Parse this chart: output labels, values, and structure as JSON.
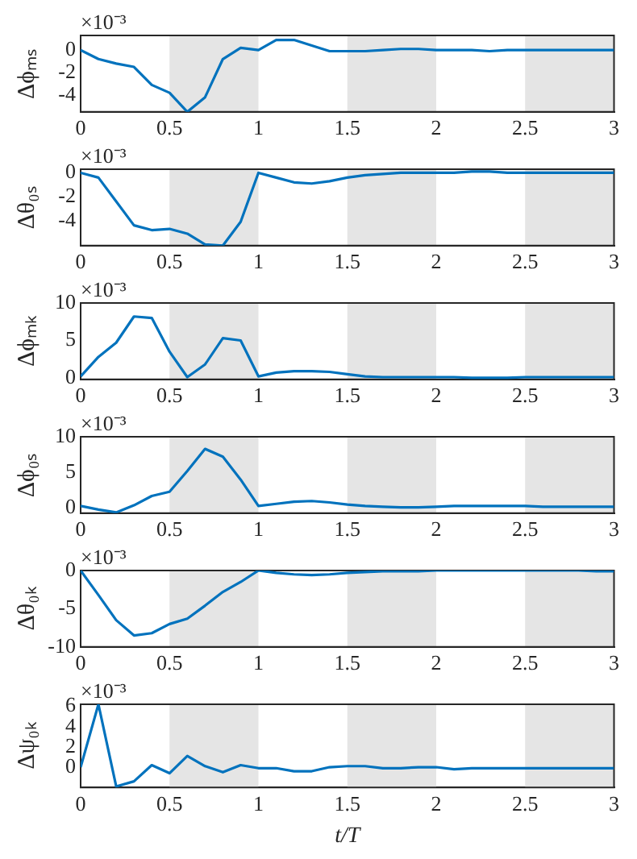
{
  "chart_data": [
    {
      "type": "line",
      "ylabel": "Δϕₘₛ",
      "annotations": [
        "×10⁻³"
      ],
      "color": "#0072bd",
      "xlim": [
        0,
        3
      ],
      "xticks": [
        0,
        0.5,
        1,
        1.5,
        2,
        2.5,
        3
      ],
      "ylim": [
        -5.5,
        1.3
      ],
      "yticks": [
        -4,
        -2,
        0
      ],
      "bands": [
        {
          "axis": "x",
          "from": 0.5,
          "to": 1,
          "color": "#e5e5e5"
        },
        {
          "axis": "x",
          "from": 1.5,
          "to": 2,
          "color": "#e5e5e5"
        },
        {
          "axis": "x",
          "from": 2.5,
          "to": 3,
          "color": "#e5e5e5"
        }
      ],
      "x": [
        0,
        0.1,
        0.2,
        0.3,
        0.4,
        0.5,
        0.6,
        0.7,
        0.8,
        0.9,
        1,
        1.1,
        1.2,
        1.3,
        1.4,
        1.5,
        1.6,
        1.7,
        1.8,
        1.9,
        2,
        2.1,
        2.2,
        2.3,
        2.4,
        2.5,
        2.6,
        2.7,
        2.8,
        2.9,
        3
      ],
      "values": [
        0,
        -0.8,
        -1.2,
        -1.5,
        -3.1,
        -3.8,
        -5.5,
        -4.2,
        -0.8,
        0.2,
        0,
        0.9,
        0.9,
        0.4,
        -0.1,
        -0.1,
        -0.1,
        0,
        0.1,
        0.1,
        0,
        0,
        0,
        -0.1,
        0,
        0,
        0,
        0,
        0,
        0,
        0
      ]
    },
    {
      "type": "line",
      "ylabel": "Δθ₀ₛ",
      "annotations": [
        "×10⁻³"
      ],
      "color": "#0072bd",
      "xlim": [
        0,
        3
      ],
      "xticks": [
        0,
        0.5,
        1,
        1.5,
        2,
        2.5,
        3
      ],
      "ylim": [
        -6.1,
        0.3
      ],
      "yticks": [
        -4,
        -2,
        0
      ],
      "bands": [
        {
          "axis": "x",
          "from": 0.5,
          "to": 1,
          "color": "#e5e5e5"
        },
        {
          "axis": "x",
          "from": 1.5,
          "to": 2,
          "color": "#e5e5e5"
        },
        {
          "axis": "x",
          "from": 2.5,
          "to": 3,
          "color": "#e5e5e5"
        }
      ],
      "x": [
        0,
        0.1,
        0.2,
        0.3,
        0.4,
        0.5,
        0.6,
        0.7,
        0.8,
        0.9,
        1,
        1.1,
        1.2,
        1.3,
        1.4,
        1.5,
        1.6,
        1.7,
        1.8,
        1.9,
        2,
        2.1,
        2.2,
        2.3,
        2.4,
        2.5,
        2.6,
        2.7,
        2.8,
        2.9,
        3
      ],
      "values": [
        0,
        -0.4,
        -2.4,
        -4.4,
        -4.8,
        -4.7,
        -5.1,
        -6.0,
        -6.1,
        -4.1,
        0,
        -0.4,
        -0.8,
        -0.9,
        -0.7,
        -0.4,
        -0.2,
        -0.1,
        0,
        0,
        0,
        0,
        0.1,
        0.1,
        0,
        0,
        0,
        0,
        0,
        0,
        0
      ]
    },
    {
      "type": "line",
      "ylabel": "Δϕₘₖ",
      "annotations": [
        "×10⁻³"
      ],
      "color": "#0072bd",
      "xlim": [
        0,
        3
      ],
      "xticks": [
        0,
        0.5,
        1,
        1.5,
        2,
        2.5,
        3
      ],
      "ylim": [
        -0.2,
        10
      ],
      "yticks": [
        0,
        5,
        10
      ],
      "bands": [
        {
          "axis": "x",
          "from": 0.5,
          "to": 1,
          "color": "#e5e5e5"
        },
        {
          "axis": "x",
          "from": 1.5,
          "to": 2,
          "color": "#e5e5e5"
        },
        {
          "axis": "x",
          "from": 2.5,
          "to": 3,
          "color": "#e5e5e5"
        }
      ],
      "x": [
        0,
        0.1,
        0.2,
        0.3,
        0.4,
        0.5,
        0.6,
        0.7,
        0.8,
        0.9,
        1,
        1.1,
        1.2,
        1.3,
        1.4,
        1.5,
        1.6,
        1.7,
        1.8,
        1.9,
        2,
        2.1,
        2.2,
        2.3,
        2.4,
        2.5,
        2.6,
        2.7,
        2.8,
        2.9,
        3
      ],
      "values": [
        0.2,
        2.8,
        4.7,
        8.2,
        8.0,
        3.5,
        0.1,
        1.8,
        5.3,
        5.0,
        0.2,
        0.7,
        0.9,
        0.9,
        0.8,
        0.5,
        0.2,
        0.1,
        0.1,
        0.1,
        0.1,
        0.1,
        0,
        0,
        0,
        0.1,
        0.1,
        0.1,
        0.1,
        0.1,
        0.1
      ]
    },
    {
      "type": "line",
      "ylabel": "Δϕ₀ₛ",
      "annotations": [
        "×10⁻³"
      ],
      "color": "#0072bd",
      "xlim": [
        0,
        3
      ],
      "xticks": [
        0,
        0.5,
        1,
        1.5,
        2,
        2.5,
        3
      ],
      "ylim": [
        -0.7,
        10
      ],
      "yticks": [
        0,
        5,
        10
      ],
      "bands": [
        {
          "axis": "x",
          "from": 0.5,
          "to": 1,
          "color": "#e5e5e5"
        },
        {
          "axis": "x",
          "from": 1.5,
          "to": 2,
          "color": "#e5e5e5"
        },
        {
          "axis": "x",
          "from": 2.5,
          "to": 3,
          "color": "#e5e5e5"
        }
      ],
      "x": [
        0,
        0.1,
        0.2,
        0.3,
        0.4,
        0.5,
        0.6,
        0.7,
        0.8,
        0.9,
        1,
        1.1,
        1.2,
        1.3,
        1.4,
        1.5,
        1.6,
        1.7,
        1.8,
        1.9,
        2,
        2.1,
        2.2,
        2.3,
        2.4,
        2.5,
        2.6,
        2.7,
        2.8,
        2.9,
        3
      ],
      "values": [
        0.3,
        -0.2,
        -0.6,
        0.4,
        1.7,
        2.3,
        5.2,
        8.3,
        7.2,
        4.0,
        0.3,
        0.6,
        0.9,
        1.0,
        0.8,
        0.5,
        0.3,
        0.2,
        0.1,
        0.1,
        0.2,
        0.3,
        0.3,
        0.3,
        0.3,
        0.3,
        0.2,
        0.2,
        0.2,
        0.2,
        0.2
      ]
    },
    {
      "type": "line",
      "ylabel": "Δθ₀ₖ",
      "annotations": [
        "×10⁻³"
      ],
      "color": "#0072bd",
      "xlim": [
        0,
        3
      ],
      "xticks": [
        0,
        0.5,
        1,
        1.5,
        2,
        2.5,
        3
      ],
      "ylim": [
        -10,
        0
      ],
      "yticks": [
        -10,
        -5,
        0
      ],
      "bands": [
        {
          "axis": "x",
          "from": 0.5,
          "to": 1,
          "color": "#e5e5e5"
        },
        {
          "axis": "x",
          "from": 1.5,
          "to": 2,
          "color": "#e5e5e5"
        },
        {
          "axis": "x",
          "from": 2.5,
          "to": 3,
          "color": "#e5e5e5"
        }
      ],
      "x": [
        0,
        0.1,
        0.2,
        0.3,
        0.4,
        0.5,
        0.6,
        0.7,
        0.8,
        0.9,
        1,
        1.1,
        1.2,
        1.3,
        1.4,
        1.5,
        1.6,
        1.7,
        1.8,
        1.9,
        2,
        2.1,
        2.2,
        2.3,
        2.4,
        2.5,
        2.6,
        2.7,
        2.8,
        2.9,
        3
      ],
      "values": [
        0,
        -3.2,
        -6.5,
        -8.5,
        -8.2,
        -7.0,
        -6.3,
        -4.6,
        -2.8,
        -1.5,
        0,
        -0.3,
        -0.5,
        -0.6,
        -0.5,
        -0.3,
        -0.2,
        -0.1,
        -0.1,
        -0.1,
        0,
        0,
        0,
        0,
        0,
        0,
        0,
        0,
        0,
        -0.1,
        -0.1
      ]
    },
    {
      "type": "line",
      "ylabel": "Δψ₀ₖ",
      "xlabel": "t/T",
      "annotations": [
        "×10⁻³"
      ],
      "color": "#0072bd",
      "xlim": [
        0,
        3
      ],
      "xticks": [
        0,
        0.5,
        1,
        1.5,
        2,
        2.5,
        3
      ],
      "ylim": [
        -2,
        6.2
      ],
      "yticks": [
        0,
        2,
        4,
        6
      ],
      "bands": [
        {
          "axis": "x",
          "from": 0.5,
          "to": 1,
          "color": "#e5e5e5"
        },
        {
          "axis": "x",
          "from": 1.5,
          "to": 2,
          "color": "#e5e5e5"
        },
        {
          "axis": "x",
          "from": 2.5,
          "to": 3,
          "color": "#e5e5e5"
        }
      ],
      "x": [
        0,
        0.1,
        0.2,
        0.3,
        0.4,
        0.5,
        0.6,
        0.7,
        0.8,
        0.9,
        1,
        1.1,
        1.2,
        1.3,
        1.4,
        1.5,
        1.6,
        1.7,
        1.8,
        1.9,
        2,
        2.1,
        2.2,
        2.3,
        2.4,
        2.5,
        2.6,
        2.7,
        2.8,
        2.9,
        3
      ],
      "values": [
        0,
        6.2,
        -1.9,
        -1.4,
        0.2,
        -0.6,
        1.1,
        0.1,
        -0.5,
        0.2,
        -0.1,
        -0.1,
        -0.4,
        -0.4,
        0,
        0.1,
        0.1,
        -0.1,
        -0.1,
        0,
        0,
        -0.2,
        -0.1,
        -0.1,
        -0.1,
        -0.1,
        -0.1,
        -0.1,
        -0.1,
        -0.1,
        -0.1
      ]
    }
  ]
}
